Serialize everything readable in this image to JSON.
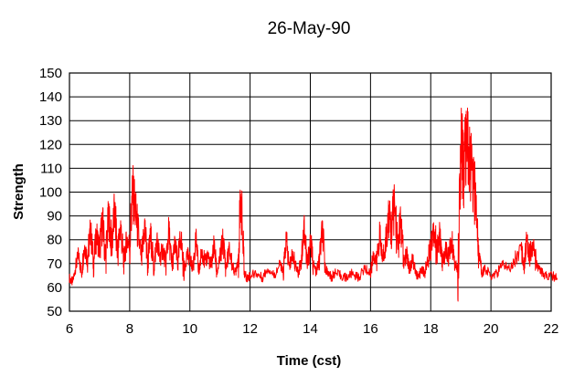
{
  "chart_data": {
    "type": "line",
    "title": "26-May-90",
    "xlabel": "Time (cst)",
    "ylabel": "Strength",
    "xlim": [
      6,
      22
    ],
    "ylim": [
      50,
      150
    ],
    "x_ticks": [
      6,
      8,
      10,
      12,
      14,
      16,
      18,
      20,
      22
    ],
    "y_ticks": [
      50,
      60,
      70,
      80,
      90,
      100,
      110,
      120,
      130,
      140,
      150
    ],
    "grid": true,
    "legend": "none",
    "color": "#ff0000",
    "series": [
      {
        "x": [
          6.0,
          6.1,
          6.2,
          6.3,
          6.4,
          6.5,
          6.6,
          6.7,
          6.8,
          6.9,
          7.0,
          7.1,
          7.2,
          7.3,
          7.4,
          7.5,
          7.6,
          7.7,
          7.8,
          7.9,
          8.0,
          8.1,
          8.2,
          8.3,
          8.4,
          8.5,
          8.6,
          8.7,
          8.8,
          8.9,
          9.0,
          9.1,
          9.2,
          9.3,
          9.4,
          9.5,
          9.6,
          9.7,
          9.8,
          9.9,
          10.0,
          10.1,
          10.2,
          10.3,
          10.4,
          10.5,
          10.6,
          10.7,
          10.8,
          10.9,
          11.0,
          11.1,
          11.2,
          11.3,
          11.4,
          11.5,
          11.6,
          11.7,
          11.8,
          11.9,
          12.0,
          12.2,
          12.4,
          12.6,
          12.8,
          13.0,
          13.1,
          13.2,
          13.3,
          13.4,
          13.5,
          13.6,
          13.7,
          13.8,
          13.9,
          14.0,
          14.1,
          14.2,
          14.3,
          14.4,
          14.5,
          14.6,
          14.7,
          14.8,
          15.0,
          15.2,
          15.4,
          15.6,
          15.8,
          16.0,
          16.1,
          16.2,
          16.3,
          16.4,
          16.5,
          16.6,
          16.7,
          16.8,
          16.9,
          17.0,
          17.1,
          17.2,
          17.3,
          17.4,
          17.5,
          17.6,
          17.7,
          17.8,
          17.9,
          18.0,
          18.1,
          18.2,
          18.3,
          18.4,
          18.5,
          18.6,
          18.7,
          18.8,
          18.9,
          19.0,
          19.05,
          19.1,
          19.2,
          19.3,
          19.4,
          19.5,
          19.6,
          19.7,
          19.8,
          20.0,
          20.2,
          20.4,
          20.6,
          20.8,
          21.0,
          21.1,
          21.2,
          21.3,
          21.4,
          21.5,
          21.6,
          21.7,
          21.8,
          22.0,
          22.2
        ],
        "y": [
          64,
          62,
          68,
          74,
          66,
          78,
          72,
          84,
          70,
          82,
          76,
          88,
          72,
          90,
          78,
          92,
          74,
          86,
          70,
          80,
          78,
          100,
          92,
          80,
          72,
          86,
          70,
          82,
          68,
          80,
          72,
          76,
          70,
          84,
          68,
          78,
          70,
          82,
          66,
          74,
          72,
          68,
          80,
          66,
          76,
          70,
          74,
          68,
          78,
          66,
          72,
          80,
          68,
          76,
          70,
          66,
          72,
          98,
          66,
          64,
          65,
          66,
          64,
          68,
          65,
          70,
          66,
          80,
          68,
          74,
          70,
          66,
          72,
          86,
          68,
          80,
          70,
          66,
          72,
          84,
          68,
          66,
          64,
          66,
          65,
          64,
          66,
          64,
          68,
          66,
          74,
          70,
          82,
          72,
          78,
          90,
          84,
          96,
          76,
          88,
          70,
          74,
          68,
          72,
          66,
          64,
          68,
          66,
          72,
          78,
          86,
          74,
          82,
          70,
          76,
          72,
          80,
          70,
          68,
          120,
          116,
          110,
          118,
          112,
          104,
          96,
          74,
          66,
          68,
          65,
          66,
          70,
          68,
          72,
          76,
          70,
          80,
          74,
          78,
          70,
          68,
          66,
          65,
          65,
          64
        ]
      }
    ]
  }
}
